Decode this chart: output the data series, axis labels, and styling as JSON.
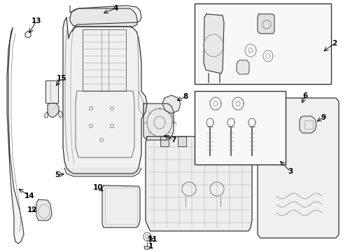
{
  "bg_color": "#ffffff",
  "lc": "#333333",
  "lw_main": 0.9,
  "lw_thin": 0.5,
  "fs": 7.5
}
